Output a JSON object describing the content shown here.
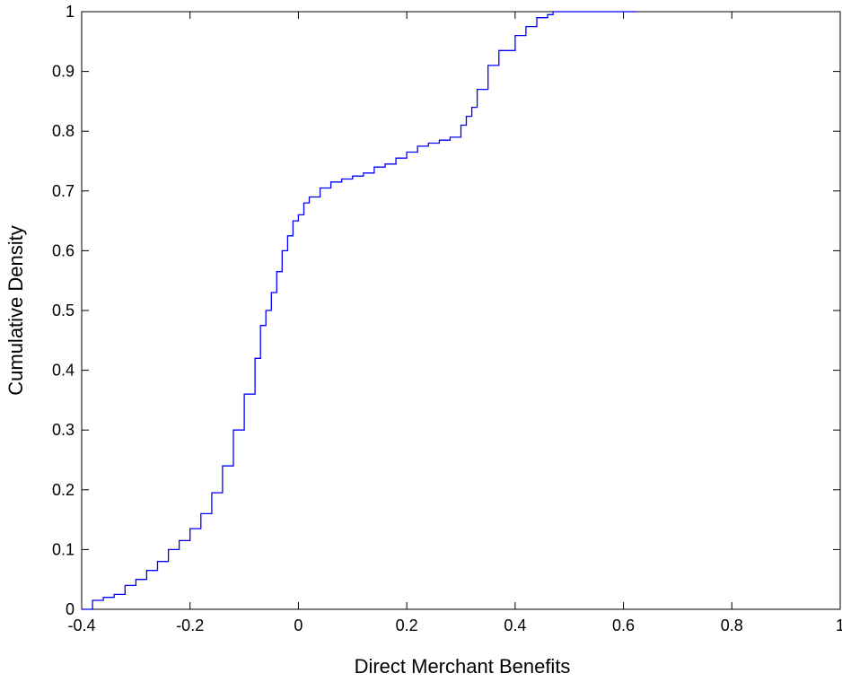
{
  "chart_data": {
    "type": "line",
    "title": "",
    "xlabel": "Direct Merchant Benefits",
    "ylabel": "Cumulative Density",
    "xlim": [
      -0.4,
      1
    ],
    "ylim": [
      0,
      1
    ],
    "x_ticks": [
      -0.4,
      -0.2,
      0,
      0.2,
      0.4,
      0.6,
      0.8,
      1
    ],
    "x_tick_labels": [
      "-0.4",
      "-0.2",
      "0",
      "0.2",
      "0.4",
      "0.6",
      "0.8",
      "1"
    ],
    "y_ticks": [
      0,
      0.1,
      0.2,
      0.3,
      0.4,
      0.5,
      0.6,
      0.7,
      0.8,
      0.9,
      1
    ],
    "y_tick_labels": [
      "0",
      "0.1",
      "0.2",
      "0.3",
      "0.4",
      "0.5",
      "0.6",
      "0.7",
      "0.8",
      "0.9",
      "1"
    ],
    "grid": false,
    "series": [
      {
        "color": "#0000ff",
        "x": [
          -0.4,
          -0.38,
          -0.36,
          -0.34,
          -0.32,
          -0.3,
          -0.28,
          -0.26,
          -0.24,
          -0.22,
          -0.2,
          -0.18,
          -0.16,
          -0.14,
          -0.12,
          -0.1,
          -0.08,
          -0.07,
          -0.06,
          -0.05,
          -0.04,
          -0.03,
          -0.02,
          -0.01,
          0.0,
          0.01,
          0.02,
          0.04,
          0.06,
          0.08,
          0.1,
          0.12,
          0.14,
          0.16,
          0.18,
          0.2,
          0.22,
          0.24,
          0.26,
          0.28,
          0.3,
          0.31,
          0.32,
          0.33,
          0.35,
          0.37,
          0.4,
          0.42,
          0.44,
          0.46,
          0.47,
          0.5,
          0.55,
          0.6,
          0.625
        ],
        "y": [
          0.0,
          0.015,
          0.02,
          0.025,
          0.04,
          0.05,
          0.065,
          0.08,
          0.1,
          0.115,
          0.135,
          0.16,
          0.195,
          0.24,
          0.3,
          0.36,
          0.42,
          0.475,
          0.5,
          0.53,
          0.565,
          0.6,
          0.625,
          0.65,
          0.66,
          0.68,
          0.69,
          0.705,
          0.715,
          0.72,
          0.725,
          0.73,
          0.74,
          0.745,
          0.755,
          0.765,
          0.775,
          0.78,
          0.785,
          0.79,
          0.81,
          0.825,
          0.84,
          0.87,
          0.91,
          0.935,
          0.96,
          0.975,
          0.99,
          0.995,
          1.0,
          1.0,
          1.0,
          1.0,
          1.0
        ]
      }
    ]
  }
}
